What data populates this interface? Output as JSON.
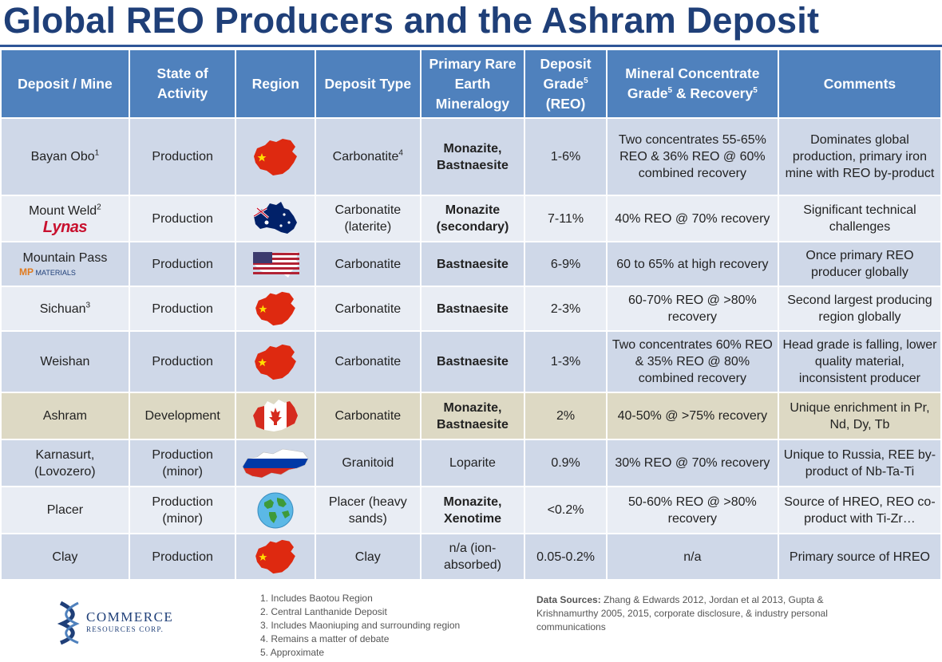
{
  "title": "Global REO Producers and the Ashram Deposit",
  "headers": {
    "deposit": "Deposit / Mine",
    "state": "State of Activity",
    "region": "Region",
    "type": "Deposit Type",
    "mineralogy": "Primary Rare Earth Mineralogy",
    "grade": "Deposit Grade",
    "grade_sup": "5",
    "grade_unit": "(REO)",
    "concentrate_a": "Mineral Concentrate Grade",
    "concentrate_sup1": "5",
    "concentrate_b": " & Recovery",
    "concentrate_sup2": "5",
    "comments": "Comments"
  },
  "rows": [
    {
      "name": "Bayan Obo",
      "sup": "1",
      "state": "Production",
      "region": "china-flag-map",
      "type": "Carbonatite",
      "type_sup": "4",
      "mineralogy": "Monazite, Bastnaesite",
      "mineralogy_bold": true,
      "grade": "1-6%",
      "concentrate": "Two concentrates 55-65% REO & 36% REO @ 60% combined recovery",
      "comments": "Dominates global production, primary iron mine with REO by-product"
    },
    {
      "name": "Mount Weld",
      "sup": "2",
      "logo": "Lynas",
      "state": "Production",
      "region": "australia-flag-map",
      "type": "Carbonatite (laterite)",
      "mineralogy": "Monazite (secondary)",
      "mineralogy_bold": true,
      "grade": "7-11%",
      "concentrate": "40% REO @ 70% recovery",
      "comments": "Significant technical challenges"
    },
    {
      "name": "Mountain Pass",
      "logo_mp": "MP",
      "logo_mp_sub": "MATERIALS",
      "state": "Production",
      "region": "usa-flag-map",
      "type": "Carbonatite",
      "mineralogy": "Bastnaesite",
      "mineralogy_bold": true,
      "grade": "6-9%",
      "concentrate": "60 to 65% at high recovery",
      "comments": "Once primary REO producer globally"
    },
    {
      "name": "Sichuan",
      "sup": "3",
      "state": "Production",
      "region": "china-flag-map",
      "type": "Carbonatite",
      "mineralogy": "Bastnaesite",
      "mineralogy_bold": true,
      "grade": "2-3%",
      "concentrate": "60-70% REO @ >80% recovery",
      "comments": "Second largest producing region globally"
    },
    {
      "name": "Weishan",
      "state": "Production",
      "region": "china-flag-map",
      "type": "Carbonatite",
      "mineralogy": "Bastnaesite",
      "mineralogy_bold": true,
      "grade": "1-3%",
      "concentrate": "Two concentrates 60% REO & 35% REO @ 80% combined recovery",
      "comments": "Head grade is falling, lower quality material, inconsistent producer"
    },
    {
      "name": "Ashram",
      "state": "Development",
      "region": "canada-flag-map",
      "type": "Carbonatite",
      "mineralogy": "Monazite, Bastnaesite",
      "mineralogy_bold": true,
      "grade": "2%",
      "concentrate": "40-50% @ >75% recovery",
      "comments": "Unique enrichment in Pr, Nd, Dy, Tb"
    },
    {
      "name": "Karnasurt, (Lovozero)",
      "state": "Production (minor)",
      "region": "russia-flag-map",
      "type": "Granitoid",
      "mineralogy": "Loparite",
      "mineralogy_bold": false,
      "grade": "0.9%",
      "concentrate": "30% REO @ 70% recovery",
      "comments": "Unique to Russia, REE by-product of Nb-Ta-Ti"
    },
    {
      "name": "Placer",
      "state": "Production (minor)",
      "region": "globe-icon",
      "type": "Placer (heavy sands)",
      "mineralogy": "Monazite, Xenotime",
      "mineralogy_bold": true,
      "grade": "<0.2%",
      "concentrate": "50-60% REO @ >80% recovery",
      "comments": "Source of HREO, REO co-product with Ti-Zr…"
    },
    {
      "name": "Clay",
      "state": "Production",
      "region": "china-flag-map",
      "type": "Clay",
      "mineralogy": "n/a (ion-absorbed)",
      "mineralogy_bold": false,
      "grade": "0.05-0.2%",
      "concentrate": "n/a",
      "comments": "Primary source of HREO"
    }
  ],
  "footer": {
    "logo_line1": "COMMERCE",
    "logo_line2": "RESOURCES CORP.",
    "notes": [
      "1. Includes Baotou Region",
      "2. Central Lanthanide Deposit",
      "3. Includes Maoniuping and surrounding region",
      "4. Remains a matter of debate",
      "5. Approximate"
    ],
    "sources_label": "Data Sources:",
    "sources_text": " Zhang & Edwards 2012, Jordan et al 2013, Gupta & Krishnamurthy 2005, 2015, corporate disclosure, & industry personal communications"
  },
  "colors": {
    "header": "#4f81bd",
    "row_odd": "#cfd8e8",
    "row_even": "#e9edf4",
    "highlight": "#ddd9c4",
    "title": "#1f3f78"
  }
}
